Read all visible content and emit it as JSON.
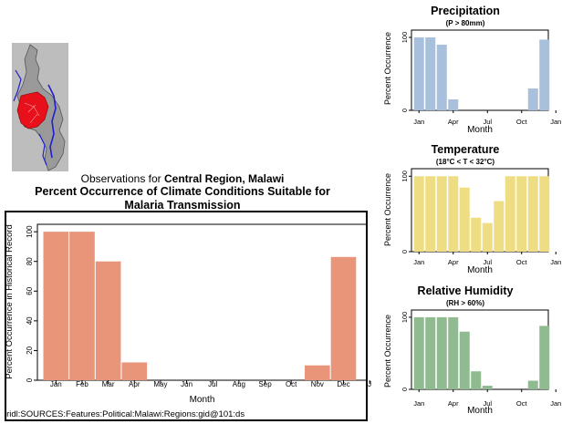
{
  "map": {
    "icon": "malawi-region-map-icon",
    "colors": {
      "land": "#bdbdbd",
      "region": "#e8101a",
      "river": "#1f1fd0",
      "border": "#555555"
    }
  },
  "main": {
    "obs_prefix": "Observations for ",
    "obs_region": "Central Region, Malawi",
    "title_line1": "Percent Occurrence of Climate Conditions Suitable for",
    "title_line2": "Malaria Transmission",
    "source": "iridl:SOURCES:Features:Political:Malawi:Regions:gid@101:ds"
  },
  "chart_data": [
    {
      "id": "main",
      "type": "bar",
      "title": "Percent Occurrence of Climate Conditions Suitable for Malaria Transmission",
      "xlabel": "Month",
      "ylabel": "Percent Occurrence in Historical Record",
      "categories": [
        "Jan",
        "Feb",
        "Mar",
        "Apr",
        "May",
        "Jun",
        "Jul",
        "Aug",
        "Sep",
        "Oct",
        "Nov",
        "Dec"
      ],
      "tick_labels": [
        "Jan",
        "Feb",
        "Mar",
        "Apr",
        "May",
        "Jun",
        "Jul",
        "Aug",
        "Sep",
        "Oct",
        "Nov",
        "Dec",
        "J"
      ],
      "values": [
        100,
        100,
        80,
        12,
        0,
        0,
        0,
        0,
        0,
        0,
        10,
        83
      ],
      "yticks": [
        0,
        20,
        40,
        60,
        80,
        100
      ],
      "ylim": [
        0,
        105
      ],
      "color": "#e8957a"
    },
    {
      "id": "precipitation",
      "type": "bar",
      "title": "Precipitation",
      "subtitle": "(P > 80mm)",
      "xlabel": "Month",
      "ylabel": "Percent Occurrence",
      "categories": [
        "Jan",
        "Feb",
        "Mar",
        "Apr",
        "May",
        "Jun",
        "Jul",
        "Aug",
        "Sep",
        "Oct",
        "Nov",
        "Dec"
      ],
      "tick_labels": [
        "Jan",
        "Apr",
        "Jul",
        "Oct",
        "Jan"
      ],
      "values": [
        100,
        100,
        90,
        15,
        0,
        0,
        0,
        0,
        0,
        0,
        30,
        97
      ],
      "yticks": [
        0,
        100
      ],
      "ylim": [
        0,
        110
      ],
      "color": "#a9c0dc"
    },
    {
      "id": "temperature",
      "type": "bar",
      "title": "Temperature",
      "subtitle": "(18°C < T < 32°C)",
      "xlabel": "Month",
      "ylabel": "Percent Occurrence",
      "categories": [
        "Jan",
        "Feb",
        "Mar",
        "Apr",
        "May",
        "Jun",
        "Jul",
        "Aug",
        "Sep",
        "Oct",
        "Nov",
        "Dec"
      ],
      "tick_labels": [
        "Jan",
        "Apr",
        "Jul",
        "Oct",
        "Jan"
      ],
      "values": [
        100,
        100,
        100,
        100,
        85,
        45,
        38,
        67,
        100,
        100,
        100,
        100
      ],
      "yticks": [
        0,
        100
      ],
      "ylim": [
        0,
        110
      ],
      "color": "#eedd82"
    },
    {
      "id": "humidity",
      "type": "bar",
      "title": "Relative Humidity",
      "subtitle": "(RH > 60%)",
      "xlabel": "Month",
      "ylabel": "Percent Occurrence",
      "categories": [
        "Jan",
        "Feb",
        "Mar",
        "Apr",
        "May",
        "Jun",
        "Jul",
        "Aug",
        "Sep",
        "Oct",
        "Nov",
        "Dec"
      ],
      "tick_labels": [
        "Jan",
        "Apr",
        "Jul",
        "Oct",
        "Jan"
      ],
      "values": [
        100,
        100,
        100,
        100,
        80,
        25,
        5,
        0,
        0,
        0,
        12,
        88
      ],
      "yticks": [
        0,
        100
      ],
      "ylim": [
        0,
        110
      ],
      "color": "#90ba90"
    }
  ]
}
